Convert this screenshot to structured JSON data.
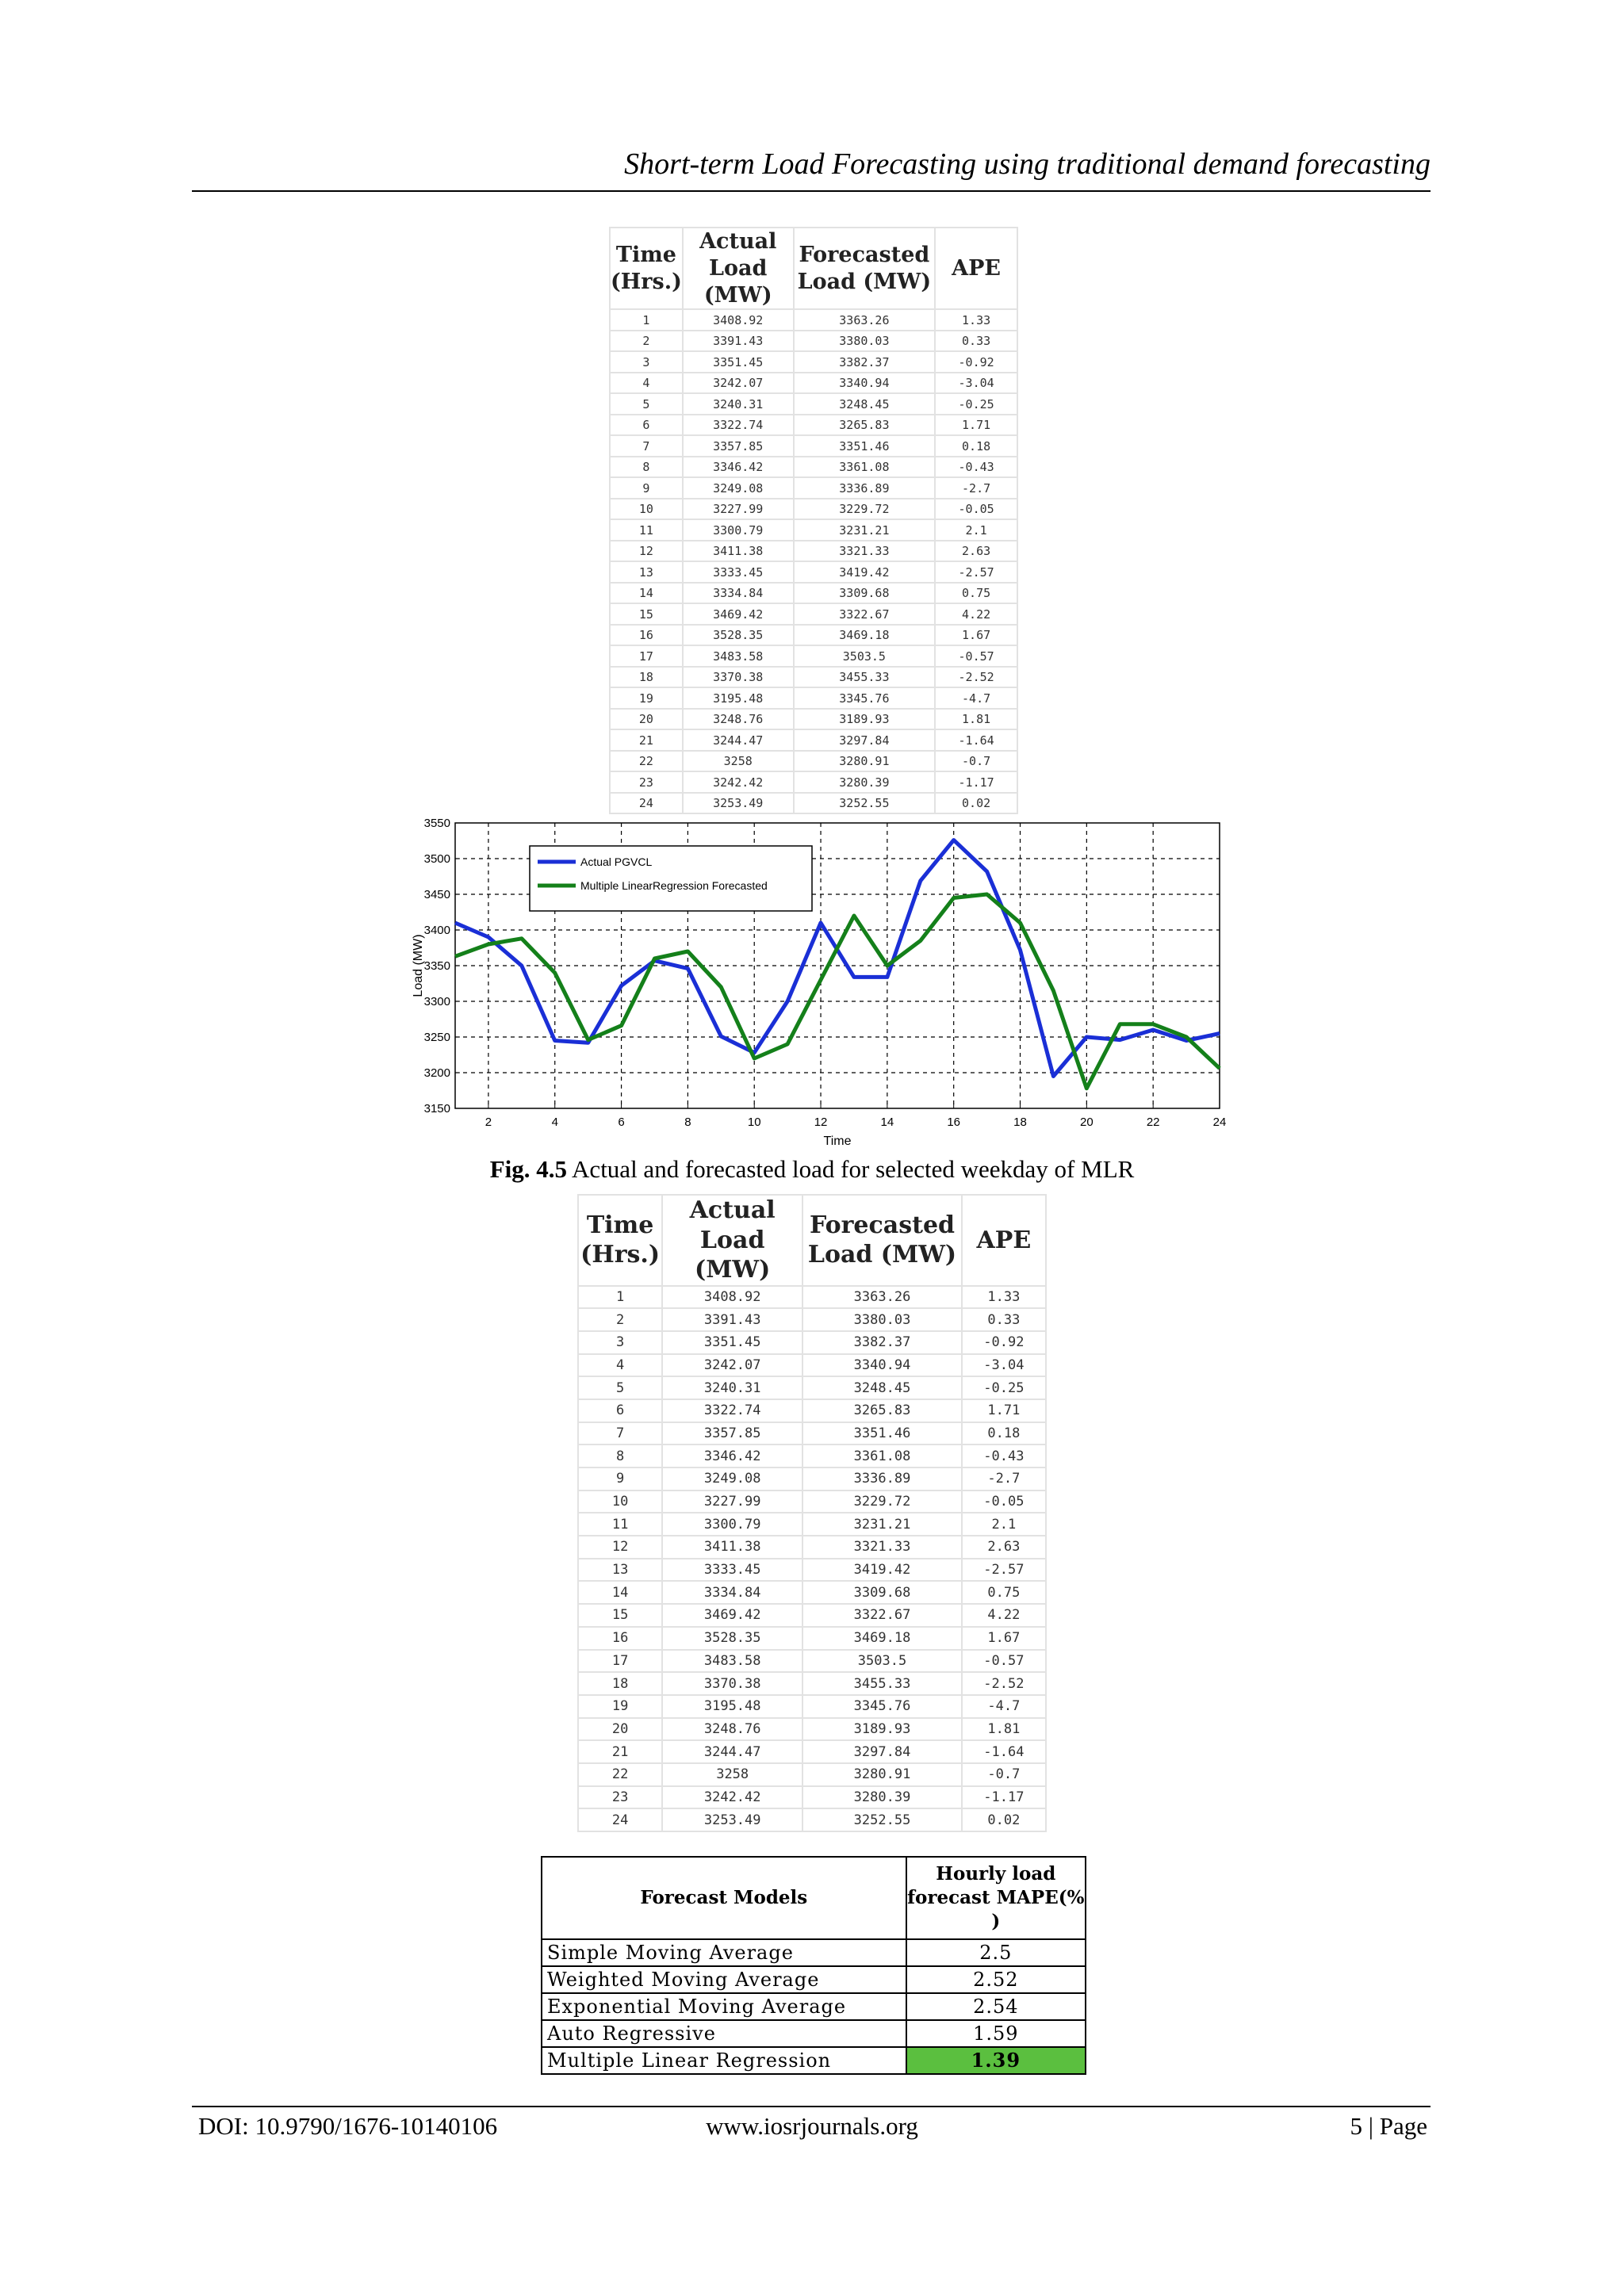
{
  "header": {
    "running_title": "Short-term Load Forecasting using traditional demand forecasting"
  },
  "table_1": {
    "headers": [
      "Time (Hrs.)",
      "Actual Load (MW)",
      "Forecasted Load (MW)",
      "APE"
    ],
    "rows": [
      [
        "1",
        "3408.92",
        "3363.26",
        "1.33"
      ],
      [
        "2",
        "3391.43",
        "3380.03",
        "0.33"
      ],
      [
        "3",
        "3351.45",
        "3382.37",
        "-0.92"
      ],
      [
        "4",
        "3242.07",
        "3340.94",
        "-3.04"
      ],
      [
        "5",
        "3240.31",
        "3248.45",
        "-0.25"
      ],
      [
        "6",
        "3322.74",
        "3265.83",
        "1.71"
      ],
      [
        "7",
        "3357.85",
        "3351.46",
        "0.18"
      ],
      [
        "8",
        "3346.42",
        "3361.08",
        "-0.43"
      ],
      [
        "9",
        "3249.08",
        "3336.89",
        "-2.7"
      ],
      [
        "10",
        "3227.99",
        "3229.72",
        "-0.05"
      ],
      [
        "11",
        "3300.79",
        "3231.21",
        "2.1"
      ],
      [
        "12",
        "3411.38",
        "3321.33",
        "2.63"
      ],
      [
        "13",
        "3333.45",
        "3419.42",
        "-2.57"
      ],
      [
        "14",
        "3334.84",
        "3309.68",
        "0.75"
      ],
      [
        "15",
        "3469.42",
        "3322.67",
        "4.22"
      ],
      [
        "16",
        "3528.35",
        "3469.18",
        "1.67"
      ],
      [
        "17",
        "3483.58",
        "3503.5",
        "-0.57"
      ],
      [
        "18",
        "3370.38",
        "3455.33",
        "-2.52"
      ],
      [
        "19",
        "3195.48",
        "3345.76",
        "-4.7"
      ],
      [
        "20",
        "3248.76",
        "3189.93",
        "1.81"
      ],
      [
        "21",
        "3244.47",
        "3297.84",
        "-1.64"
      ],
      [
        "22",
        "3258",
        "3280.91",
        "-0.7"
      ],
      [
        "23",
        "3242.42",
        "3280.39",
        "-1.17"
      ],
      [
        "24",
        "3253.49",
        "3252.55",
        "0.02"
      ]
    ]
  },
  "chart_data": {
    "type": "line",
    "title": "",
    "xlabel": "Time",
    "ylabel": "Load (MW)",
    "xlim": [
      1,
      24
    ],
    "ylim": [
      3150,
      3550
    ],
    "x_ticks": [
      2,
      4,
      6,
      8,
      10,
      12,
      14,
      16,
      18,
      20,
      22,
      24
    ],
    "y_ticks": [
      3150,
      3200,
      3250,
      3300,
      3350,
      3400,
      3450,
      3500,
      3550
    ],
    "grid": true,
    "legend_position": "top-left",
    "x": [
      1,
      2,
      3,
      4,
      5,
      6,
      7,
      8,
      9,
      10,
      11,
      12,
      13,
      14,
      15,
      16,
      17,
      18,
      19,
      20,
      21,
      22,
      23,
      24
    ],
    "series": [
      {
        "name": "Actual PGVCL",
        "color": "#1a2fd6",
        "values": [
          3410,
          3390,
          3350,
          3245,
          3242,
          3322,
          3357,
          3346,
          3251,
          3228,
          3300,
          3410,
          3334,
          3334,
          3469,
          3526,
          3482,
          3372,
          3195,
          3250,
          3246,
          3260,
          3245,
          3255
        ]
      },
      {
        "name": "Multiple LinearRegression Forecasted",
        "color": "#14801a",
        "values": [
          3363,
          3380,
          3388,
          3340,
          3246,
          3266,
          3360,
          3370,
          3320,
          3220,
          3240,
          3330,
          3420,
          3350,
          3385,
          3445,
          3450,
          3410,
          3315,
          3178,
          3268,
          3268,
          3250,
          3206
        ]
      }
    ]
  },
  "figure_caption": {
    "label": "Fig. 4.5",
    "text": "Actual and forecasted load for selected weekday of MLR"
  },
  "table_3": {
    "headers": [
      "Forecast Models",
      "Hourly load forecast MAPE(% )"
    ],
    "rows": [
      [
        "Simple Moving Average",
        "2.5"
      ],
      [
        "Weighted Moving Average",
        "2.52"
      ],
      [
        "Exponential Moving Average",
        "2.54"
      ],
      [
        "Auto Regressive",
        "1.59"
      ],
      [
        "Multiple Linear Regression",
        "1.39"
      ]
    ],
    "highlight_color": "#5bbf3f"
  },
  "footer": {
    "doi": "DOI: 10.9790/1676-10140106",
    "site": "www.iosrjournals.org",
    "page": "5 | Page"
  }
}
